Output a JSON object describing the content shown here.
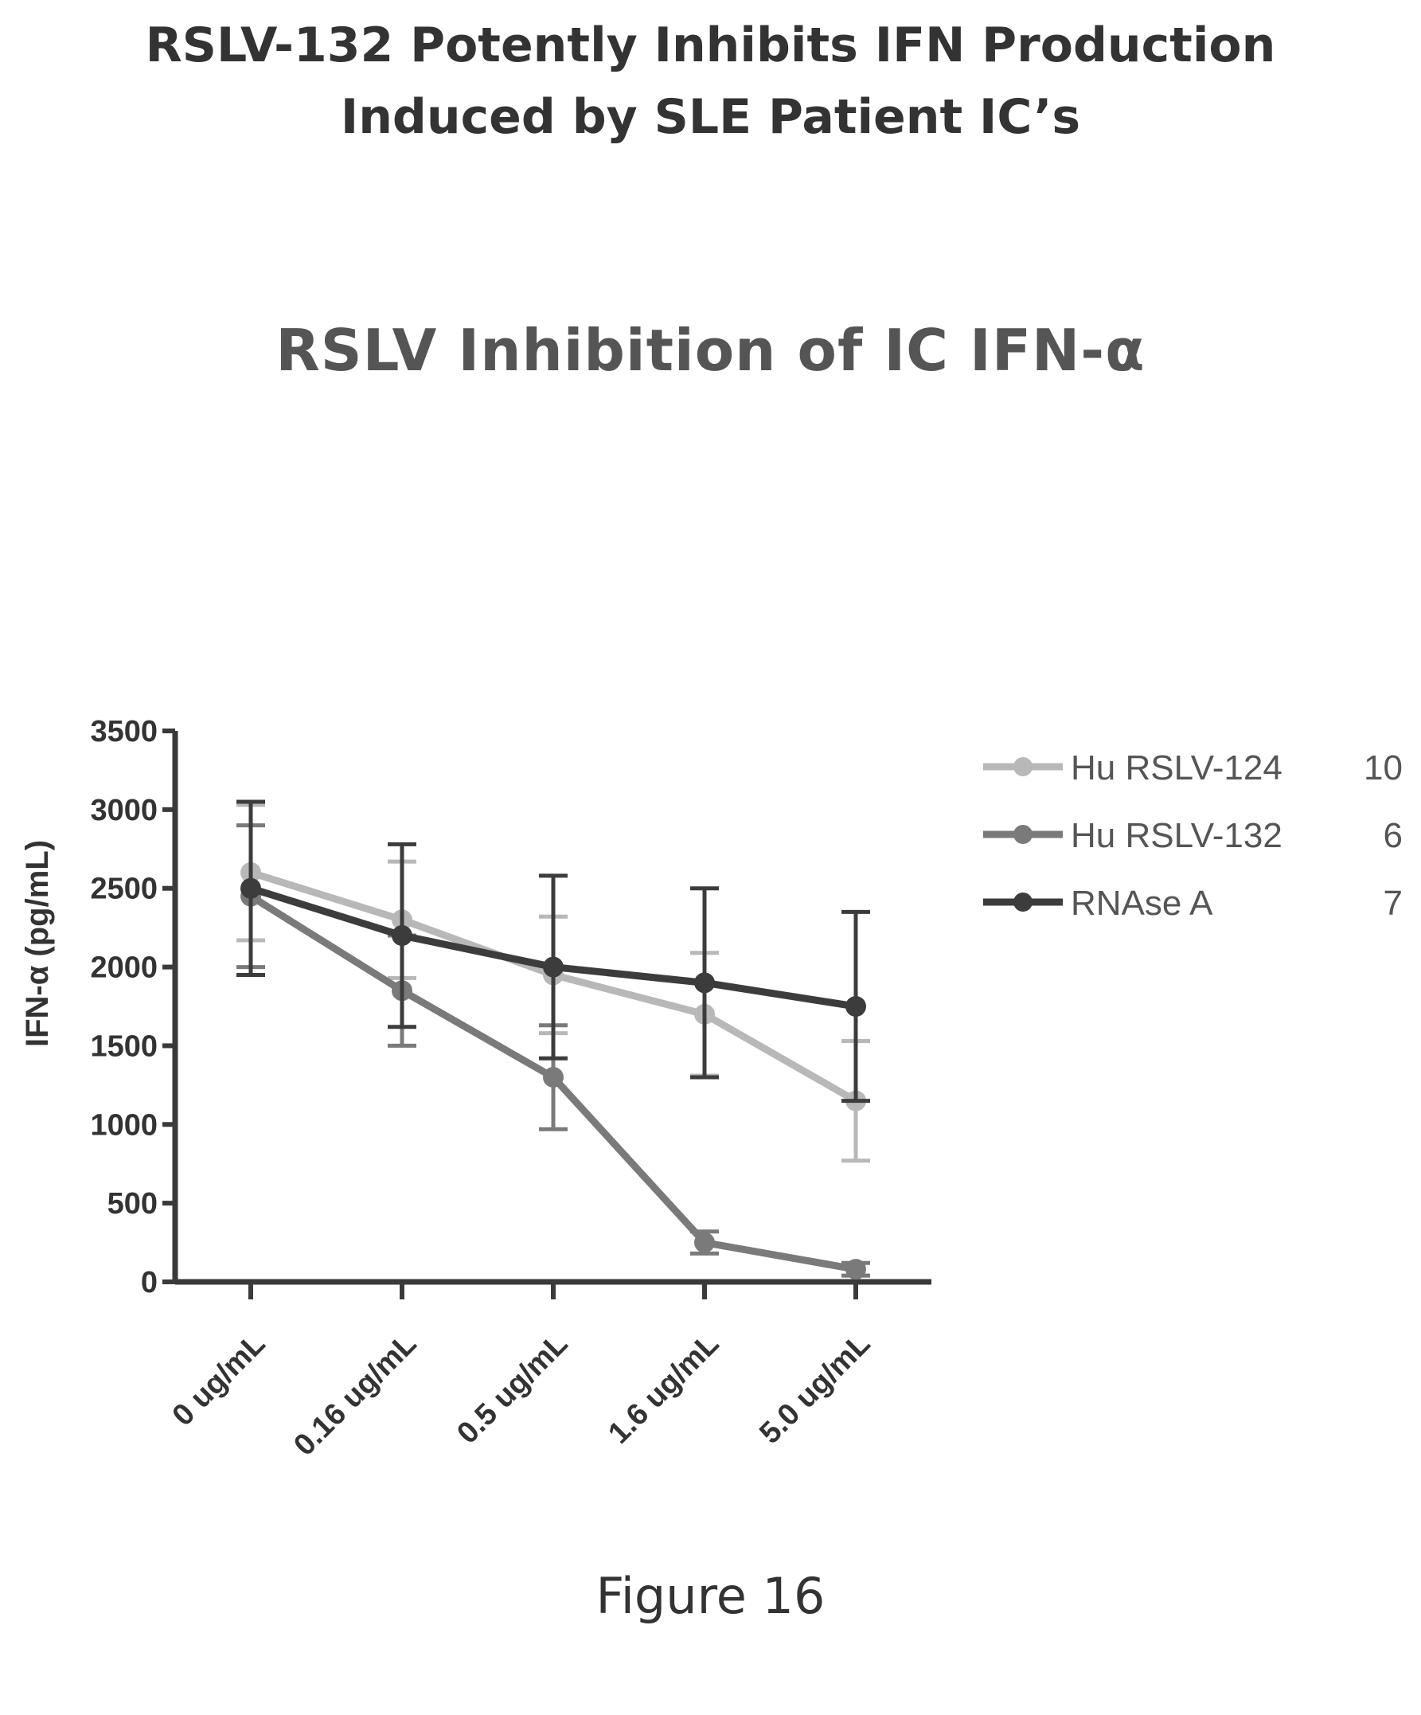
{
  "page": {
    "title_line1": "RSLV-132 Potently Inhibits IFN Production",
    "title_line2": "Induced by SLE Patient IC’s",
    "figure_caption": "Figure 16"
  },
  "colors": {
    "hu_rslv_124": "#b8b8b8",
    "hu_rslv_132": "#7a7a7a",
    "rnase_a": "#3c3c3c",
    "axis": "#3a3a3a"
  },
  "chart_data": {
    "type": "line",
    "title": "RSLV Inhibition of  IC IFN-α",
    "xlabel": "",
    "ylabel": "IFN-α (pg/mL)",
    "categories": [
      "0 ug/mL",
      "0.16 ug/mL",
      "0.5 ug/mL",
      "1.6 ug/mL",
      "5.0 ug/mL"
    ],
    "ylim": [
      0,
      3500
    ],
    "yticks": [
      0,
      500,
      1000,
      1500,
      2000,
      2500,
      3000,
      3500
    ],
    "grid": false,
    "legend_position": "right",
    "series": [
      {
        "name": "Hu RSLV-124",
        "n": "10",
        "values": [
          2600,
          2300,
          1950,
          1700,
          1150
        ],
        "error": [
          430,
          370,
          370,
          390,
          380
        ]
      },
      {
        "name": "Hu RSLV-132",
        "n": "6",
        "values": [
          2450,
          1850,
          1300,
          250,
          80
        ],
        "error": [
          450,
          350,
          330,
          70,
          40
        ]
      },
      {
        "name": "RNAse A",
        "n": "7",
        "values": [
          2500,
          2200,
          2000,
          1900,
          1750
        ],
        "error": [
          550,
          580,
          580,
          600,
          600
        ]
      }
    ]
  }
}
